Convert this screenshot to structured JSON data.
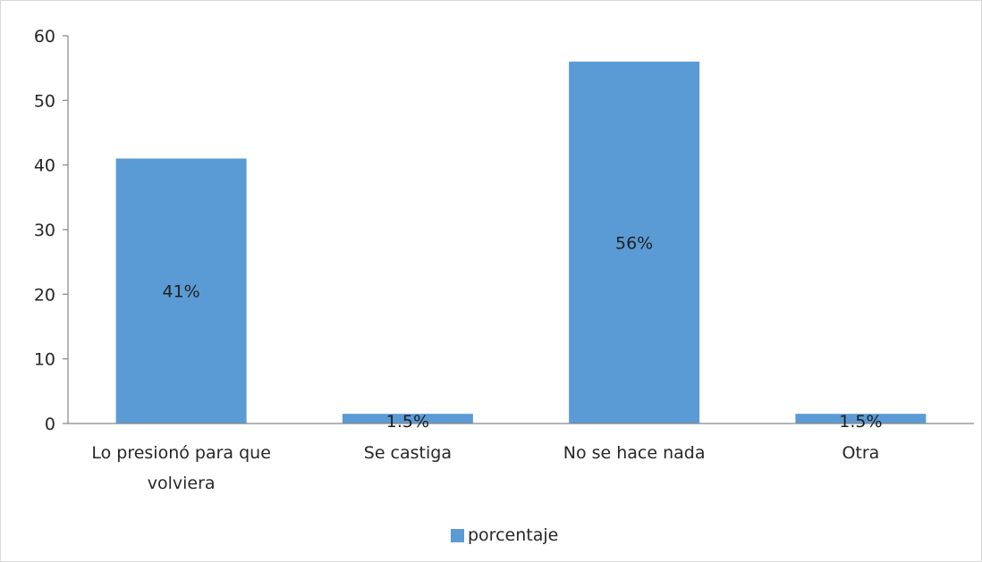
{
  "chart_data": {
    "type": "bar",
    "categories": [
      "Lo presionó para que volviera",
      "Se castiga",
      "No se hace nada",
      "Otra"
    ],
    "series": [
      {
        "name": "porcentaje",
        "values": [
          41,
          1.5,
          56,
          1.5
        ],
        "labels": [
          "41%",
          "1.5%",
          "56%",
          "1.5%"
        ],
        "color": "#5b9bd5"
      }
    ],
    "ylim": [
      0,
      60
    ],
    "yticks": [
      0,
      10,
      20,
      30,
      40,
      50,
      60
    ],
    "grid": false,
    "legend": "bottom"
  }
}
